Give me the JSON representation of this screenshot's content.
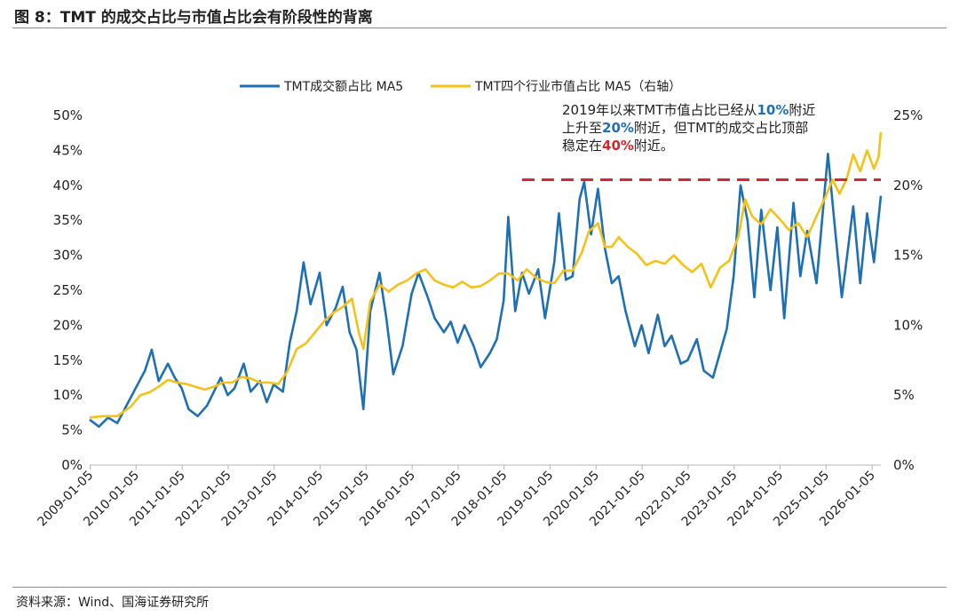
{
  "figure": {
    "title": "图 8：TMT 的成交占比与市值占比会有阶段性的背离",
    "source": "资料来源：Wind、国海证券研究所"
  },
  "colors": {
    "series1": "#1f6fb4",
    "series2": "#f6c117",
    "reference_line": "#d9262c",
    "highlight_blue": "#1f6fb4",
    "highlight_red": "#d9262c"
  },
  "annotation": {
    "line1": {
      "pre": "2019年以来TMT市值占比已经从",
      "hl": "10%",
      "post": "附近"
    },
    "line2": {
      "pre": "上升至",
      "hl": "20%",
      "post": "附近，但TMT的成交占比顶部"
    },
    "line3": {
      "pre": "稳定在",
      "hl": "40%",
      "post": "附近。"
    }
  },
  "chart_data": {
    "type": "line",
    "title": "",
    "x_start": 2009.0,
    "x_end": 2026.2,
    "x_tick_labels": [
      "2009-01-05",
      "2010-01-05",
      "2011-01-05",
      "2012-01-05",
      "2013-01-05",
      "2014-01-05",
      "2015-01-05",
      "2016-01-05",
      "2017-01-05",
      "2018-01-05",
      "2019-01-05",
      "2020-01-05",
      "2021-01-05",
      "2022-01-05",
      "2023-01-05",
      "2024-01-05",
      "2025-01-05",
      "2026-01-05"
    ],
    "y_left": {
      "min": 0,
      "max": 50,
      "step": 5,
      "tick_labels": [
        "0%",
        "5%",
        "10%",
        "15%",
        "20%",
        "25%",
        "30%",
        "35%",
        "40%",
        "45%",
        "50%"
      ]
    },
    "y_right": {
      "min": 0,
      "max": 25,
      "step": 5,
      "tick_labels": [
        "0%",
        "5%",
        "10%",
        "15%",
        "20%",
        "25%"
      ]
    },
    "reference_line": {
      "axis": "left",
      "value": 40.8,
      "x_from": 2018.4,
      "x_to": 2026.2
    },
    "series": [
      {
        "name": "TMT成交额占比 MA5",
        "axis": "left",
        "points": [
          [
            2009.0,
            6.5
          ],
          [
            2009.2,
            5.5
          ],
          [
            2009.4,
            6.8
          ],
          [
            2009.6,
            6.0
          ],
          [
            2009.8,
            8.5
          ],
          [
            2010.0,
            11.0
          ],
          [
            2010.2,
            13.5
          ],
          [
            2010.35,
            16.5
          ],
          [
            2010.5,
            12.0
          ],
          [
            2010.7,
            14.5
          ],
          [
            2010.85,
            12.5
          ],
          [
            2011.0,
            11.0
          ],
          [
            2011.15,
            8.0
          ],
          [
            2011.35,
            7.0
          ],
          [
            2011.55,
            8.5
          ],
          [
            2011.7,
            10.5
          ],
          [
            2011.85,
            12.5
          ],
          [
            2012.0,
            10.0
          ],
          [
            2012.15,
            11.0
          ],
          [
            2012.35,
            14.5
          ],
          [
            2012.5,
            10.5
          ],
          [
            2012.7,
            12.0
          ],
          [
            2012.85,
            9.0
          ],
          [
            2013.0,
            11.5
          ],
          [
            2013.2,
            10.5
          ],
          [
            2013.35,
            17.5
          ],
          [
            2013.5,
            22.0
          ],
          [
            2013.65,
            29.0
          ],
          [
            2013.8,
            23.0
          ],
          [
            2014.0,
            27.5
          ],
          [
            2014.15,
            20.0
          ],
          [
            2014.35,
            22.5
          ],
          [
            2014.5,
            25.5
          ],
          [
            2014.65,
            19.0
          ],
          [
            2014.8,
            16.5
          ],
          [
            2014.95,
            8.0
          ],
          [
            2015.1,
            22.0
          ],
          [
            2015.3,
            27.5
          ],
          [
            2015.45,
            21.0
          ],
          [
            2015.6,
            13.0
          ],
          [
            2015.8,
            17.0
          ],
          [
            2016.0,
            24.5
          ],
          [
            2016.15,
            27.5
          ],
          [
            2016.35,
            24.0
          ],
          [
            2016.5,
            21.0
          ],
          [
            2016.7,
            19.0
          ],
          [
            2016.85,
            20.5
          ],
          [
            2017.0,
            17.5
          ],
          [
            2017.15,
            20.0
          ],
          [
            2017.35,
            17.0
          ],
          [
            2017.5,
            14.0
          ],
          [
            2017.7,
            16.0
          ],
          [
            2017.85,
            18.0
          ],
          [
            2018.0,
            23.5
          ],
          [
            2018.1,
            35.5
          ],
          [
            2018.25,
            22.0
          ],
          [
            2018.4,
            27.5
          ],
          [
            2018.55,
            24.5
          ],
          [
            2018.75,
            28.0
          ],
          [
            2018.9,
            21.0
          ],
          [
            2019.1,
            29.0
          ],
          [
            2019.2,
            36.0
          ],
          [
            2019.35,
            26.5
          ],
          [
            2019.5,
            27.0
          ],
          [
            2019.65,
            38.0
          ],
          [
            2019.75,
            40.5
          ],
          [
            2019.9,
            33.0
          ],
          [
            2020.05,
            39.5
          ],
          [
            2020.2,
            31.0
          ],
          [
            2020.35,
            26.0
          ],
          [
            2020.5,
            27.0
          ],
          [
            2020.65,
            22.0
          ],
          [
            2020.85,
            17.0
          ],
          [
            2021.0,
            20.0
          ],
          [
            2021.15,
            16.0
          ],
          [
            2021.35,
            21.5
          ],
          [
            2021.5,
            17.0
          ],
          [
            2021.65,
            18.5
          ],
          [
            2021.85,
            14.5
          ],
          [
            2022.0,
            15.0
          ],
          [
            2022.2,
            18.0
          ],
          [
            2022.35,
            13.5
          ],
          [
            2022.55,
            12.5
          ],
          [
            2022.7,
            16.0
          ],
          [
            2022.85,
            19.5
          ],
          [
            2023.0,
            27.0
          ],
          [
            2023.15,
            40.0
          ],
          [
            2023.3,
            35.0
          ],
          [
            2023.45,
            24.0
          ],
          [
            2023.6,
            36.5
          ],
          [
            2023.8,
            25.0
          ],
          [
            2023.95,
            34.0
          ],
          [
            2024.1,
            21.0
          ],
          [
            2024.3,
            37.5
          ],
          [
            2024.45,
            27.0
          ],
          [
            2024.6,
            33.5
          ],
          [
            2024.8,
            26.0
          ],
          [
            2024.95,
            37.0
          ],
          [
            2025.05,
            44.5
          ],
          [
            2025.2,
            34.0
          ],
          [
            2025.35,
            24.0
          ],
          [
            2025.45,
            29.0
          ],
          [
            2025.6,
            37.0
          ],
          [
            2025.75,
            26.0
          ],
          [
            2025.9,
            36.0
          ],
          [
            2026.05,
            29.0
          ],
          [
            2026.2,
            38.5
          ]
        ]
      },
      {
        "name": "TMT四个行业市值占比 MA5（右轴）",
        "axis": "right",
        "points": [
          [
            2009.0,
            3.4
          ],
          [
            2009.3,
            3.5
          ],
          [
            2009.6,
            3.5
          ],
          [
            2009.9,
            4.2
          ],
          [
            2010.1,
            5.0
          ],
          [
            2010.3,
            5.2
          ],
          [
            2010.5,
            5.6
          ],
          [
            2010.7,
            6.1
          ],
          [
            2010.9,
            5.9
          ],
          [
            2011.1,
            5.8
          ],
          [
            2011.3,
            5.6
          ],
          [
            2011.5,
            5.4
          ],
          [
            2011.7,
            5.6
          ],
          [
            2011.9,
            5.9
          ],
          [
            2012.1,
            5.9
          ],
          [
            2012.3,
            6.3
          ],
          [
            2012.5,
            6.2
          ],
          [
            2012.7,
            5.9
          ],
          [
            2012.9,
            5.9
          ],
          [
            2013.1,
            5.8
          ],
          [
            2013.3,
            6.7
          ],
          [
            2013.5,
            8.3
          ],
          [
            2013.7,
            8.7
          ],
          [
            2013.9,
            9.5
          ],
          [
            2014.1,
            10.3
          ],
          [
            2014.3,
            10.9
          ],
          [
            2014.5,
            11.3
          ],
          [
            2014.7,
            11.9
          ],
          [
            2014.85,
            9.5
          ],
          [
            2014.95,
            8.3
          ],
          [
            2015.1,
            11.7
          ],
          [
            2015.3,
            12.9
          ],
          [
            2015.5,
            12.4
          ],
          [
            2015.7,
            12.9
          ],
          [
            2015.9,
            13.2
          ],
          [
            2016.1,
            13.7
          ],
          [
            2016.3,
            14.0
          ],
          [
            2016.5,
            13.2
          ],
          [
            2016.7,
            12.9
          ],
          [
            2016.9,
            12.7
          ],
          [
            2017.1,
            13.1
          ],
          [
            2017.3,
            12.7
          ],
          [
            2017.5,
            12.8
          ],
          [
            2017.7,
            13.2
          ],
          [
            2017.9,
            13.7
          ],
          [
            2018.1,
            13.7
          ],
          [
            2018.3,
            13.2
          ],
          [
            2018.5,
            14.0
          ],
          [
            2018.7,
            13.4
          ],
          [
            2018.9,
            13.1
          ],
          [
            2019.1,
            13.0
          ],
          [
            2019.3,
            13.9
          ],
          [
            2019.5,
            13.9
          ],
          [
            2019.7,
            15.2
          ],
          [
            2019.85,
            16.7
          ],
          [
            2020.05,
            17.3
          ],
          [
            2020.2,
            15.6
          ],
          [
            2020.35,
            15.6
          ],
          [
            2020.5,
            16.3
          ],
          [
            2020.7,
            15.6
          ],
          [
            2020.9,
            15.1
          ],
          [
            2021.1,
            14.3
          ],
          [
            2021.3,
            14.6
          ],
          [
            2021.5,
            14.4
          ],
          [
            2021.7,
            15.0
          ],
          [
            2021.9,
            14.3
          ],
          [
            2022.1,
            13.8
          ],
          [
            2022.3,
            14.4
          ],
          [
            2022.5,
            12.7
          ],
          [
            2022.7,
            14.1
          ],
          [
            2022.9,
            14.6
          ],
          [
            2023.1,
            16.3
          ],
          [
            2023.25,
            19.0
          ],
          [
            2023.4,
            17.8
          ],
          [
            2023.6,
            17.2
          ],
          [
            2023.8,
            18.3
          ],
          [
            2024.0,
            17.6
          ],
          [
            2024.2,
            16.8
          ],
          [
            2024.4,
            17.3
          ],
          [
            2024.6,
            16.3
          ],
          [
            2024.8,
            17.8
          ],
          [
            2025.0,
            19.2
          ],
          [
            2025.15,
            20.4
          ],
          [
            2025.3,
            19.4
          ],
          [
            2025.45,
            20.4
          ],
          [
            2025.6,
            22.2
          ],
          [
            2025.75,
            21.0
          ],
          [
            2025.9,
            22.5
          ],
          [
            2026.05,
            21.2
          ],
          [
            2026.15,
            22.0
          ],
          [
            2026.2,
            23.8
          ]
        ]
      }
    ]
  }
}
